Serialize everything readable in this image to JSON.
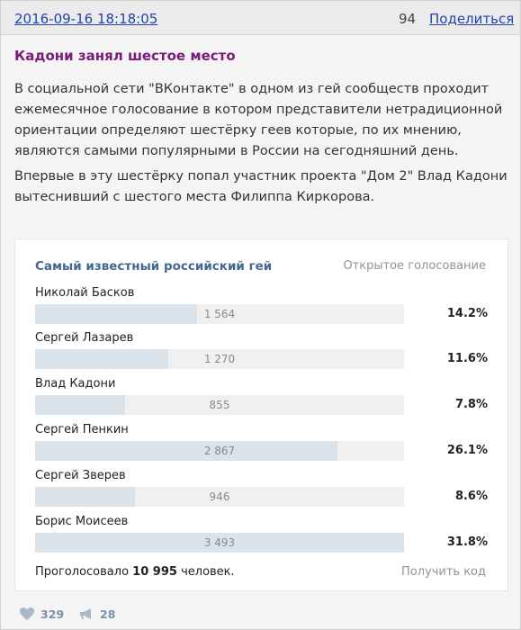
{
  "header": {
    "date": "2016-09-16 18:18:05",
    "views": "94",
    "share_label": "Поделиться"
  },
  "post": {
    "title": "Кадони занял шестое место",
    "paragraphs": [
      "В социальной сети \"ВКонтакте\" в одном из гей сообществ проходит ежемесячное голосование в котором представители нетрадиционной ориентации определяют шестёрку геев которые, по их мнению, являются самыми популярными в России на сегодняшний день.",
      "Впервые в эту шестёрку попал участник проекта \"Дом 2\" Влад Кадони вытеснивший с шестого места Филиппа Киркорова."
    ]
  },
  "poll": {
    "title": "Самый известный российский гей",
    "type_label": "Открытое голосование",
    "options": [
      {
        "label": "Николай Басков",
        "count": "1 564",
        "percent": "14.2%",
        "fraction": 0.44
      },
      {
        "label": "Сергей Лазарев",
        "count": "1 270",
        "percent": "11.6%",
        "fraction": 0.36
      },
      {
        "label": "Влад Кадони",
        "count": "855",
        "percent": "7.8%",
        "fraction": 0.245
      },
      {
        "label": "Сергей Пенкин",
        "count": "2 867",
        "percent": "26.1%",
        "fraction": 0.82
      },
      {
        "label": "Сергей Зверев",
        "count": "946",
        "percent": "8.6%",
        "fraction": 0.27
      },
      {
        "label": "Борис Моисеев",
        "count": "3 493",
        "percent": "31.8%",
        "fraction": 1.0
      }
    ],
    "total_prefix": "Проголосовало",
    "total_count": "10 995",
    "total_suffix": "человек.",
    "get_code_label": "Получить код"
  },
  "footer": {
    "likes": "329",
    "reposts": "28",
    "like_icon": "heart-icon",
    "repost_icon": "megaphone-icon",
    "accent_color": "#7b90a8"
  }
}
